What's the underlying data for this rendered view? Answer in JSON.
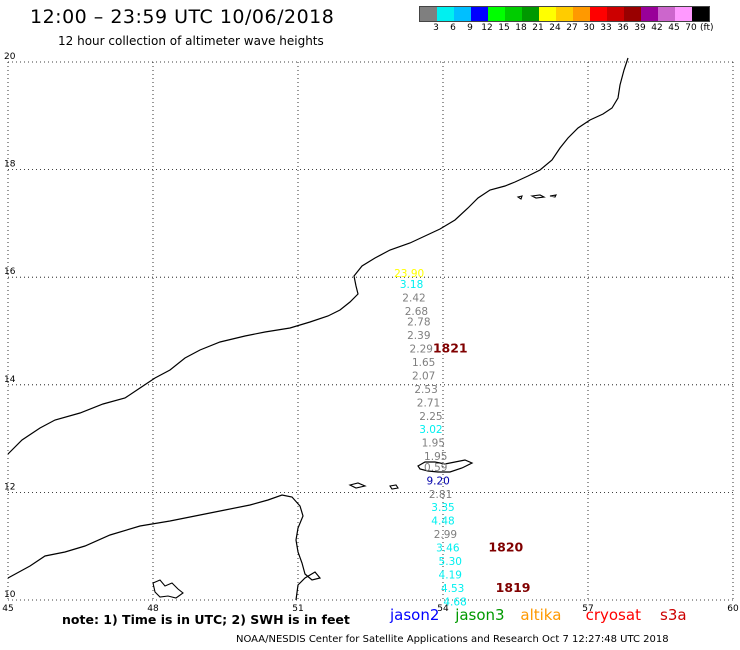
{
  "header": {
    "title": "12:00 – 23:59 UTC 10/06/2018",
    "subtitle": "12 hour collection of altimeter wave heights"
  },
  "colorbar": {
    "unit": "(ft)",
    "swatches": [
      {
        "label": "3",
        "color": "#7f7f7f"
      },
      {
        "label": "6",
        "color": "#00f0f0"
      },
      {
        "label": "9",
        "color": "#00bfff"
      },
      {
        "label": "12",
        "color": "#0000ff"
      },
      {
        "label": "15",
        "color": "#00ff00"
      },
      {
        "label": "18",
        "color": "#00cc00"
      },
      {
        "label": "21",
        "color": "#009900"
      },
      {
        "label": "24",
        "color": "#ffff00"
      },
      {
        "label": "27",
        "color": "#ffcc00"
      },
      {
        "label": "30",
        "color": "#ff9900"
      },
      {
        "label": "33",
        "color": "#ff0000"
      },
      {
        "label": "36",
        "color": "#cc0000"
      },
      {
        "label": "39",
        "color": "#990000"
      },
      {
        "label": "42",
        "color": "#990099"
      },
      {
        "label": "45",
        "color": "#cc66cc"
      },
      {
        "label": "70",
        "color": "#ff99ff"
      },
      {
        "label": "",
        "color": "#000000"
      }
    ]
  },
  "chart_data": {
    "type": "scatter",
    "xlim": [
      45,
      60
    ],
    "ylim": [
      10,
      20
    ],
    "x_ticks": [
      "45",
      "48",
      "51",
      "54",
      "57",
      "60"
    ],
    "y_ticks": [
      "10",
      "12",
      "14",
      "16",
      "18",
      "20"
    ],
    "grid": true,
    "observations": [
      {
        "lon": 53.3,
        "lat": 16.0,
        "value": "23.90",
        "color": "#ffff00"
      },
      {
        "lon": 53.35,
        "lat": 15.8,
        "value": "3.18",
        "color": "#00f0f0"
      },
      {
        "lon": 53.4,
        "lat": 15.55,
        "value": "2.42",
        "color": "#7f7f7f"
      },
      {
        "lon": 53.45,
        "lat": 15.3,
        "value": "2.68",
        "color": "#7f7f7f"
      },
      {
        "lon": 53.5,
        "lat": 15.1,
        "value": "2.78",
        "color": "#7f7f7f"
      },
      {
        "lon": 53.5,
        "lat": 14.85,
        "value": "2.39",
        "color": "#7f7f7f"
      },
      {
        "lon": 53.55,
        "lat": 14.6,
        "value": "2.29",
        "color": "#7f7f7f"
      },
      {
        "lon": 53.6,
        "lat": 14.35,
        "value": "1.65",
        "color": "#7f7f7f"
      },
      {
        "lon": 53.6,
        "lat": 14.1,
        "value": "2.07",
        "color": "#7f7f7f"
      },
      {
        "lon": 53.65,
        "lat": 13.85,
        "value": "2.53",
        "color": "#7f7f7f"
      },
      {
        "lon": 53.7,
        "lat": 13.6,
        "value": "2.71",
        "color": "#7f7f7f"
      },
      {
        "lon": 53.75,
        "lat": 13.35,
        "value": "2.25",
        "color": "#7f7f7f"
      },
      {
        "lon": 53.75,
        "lat": 13.1,
        "value": "3.02",
        "color": "#00f0f0"
      },
      {
        "lon": 53.8,
        "lat": 12.85,
        "value": "1.95",
        "color": "#7f7f7f"
      },
      {
        "lon": 53.85,
        "lat": 12.6,
        "value": "1.95",
        "color": "#7f7f7f"
      },
      {
        "lon": 53.85,
        "lat": 12.4,
        "value": "0.59",
        "color": "#7f7f7f"
      },
      {
        "lon": 53.9,
        "lat": 12.15,
        "value": "9.20",
        "color": "#0000aa"
      },
      {
        "lon": 53.95,
        "lat": 11.9,
        "value": "2.81",
        "color": "#7f7f7f"
      },
      {
        "lon": 54.0,
        "lat": 11.65,
        "value": "3.35",
        "color": "#00f0f0"
      },
      {
        "lon": 54.0,
        "lat": 11.4,
        "value": "4.48",
        "color": "#00f0f0"
      },
      {
        "lon": 54.05,
        "lat": 11.15,
        "value": "2.99",
        "color": "#7f7f7f"
      },
      {
        "lon": 54.1,
        "lat": 10.9,
        "value": "3.46",
        "color": "#00f0f0"
      },
      {
        "lon": 54.15,
        "lat": 10.65,
        "value": "5.30",
        "color": "#00f0f0"
      },
      {
        "lon": 54.15,
        "lat": 10.4,
        "value": "4.19",
        "color": "#00f0f0"
      },
      {
        "lon": 54.2,
        "lat": 10.15,
        "value": "4.53",
        "color": "#00f0f0"
      },
      {
        "lon": 54.25,
        "lat": 9.9,
        "value": "4.68",
        "color": "#00f0f0"
      }
    ],
    "time_labels": [
      {
        "lon": 54.15,
        "lat": 14.6,
        "text": "1821",
        "color": "#800000"
      },
      {
        "lon": 55.3,
        "lat": 10.9,
        "text": "1820",
        "color": "#800000"
      },
      {
        "lon": 55.45,
        "lat": 10.15,
        "text": "1819",
        "color": "#800000"
      }
    ]
  },
  "footer": {
    "note": "note:  1) Time is in UTC;  2) SWH is in feet",
    "legend": [
      {
        "label": "jason2",
        "color": "#0000ff"
      },
      {
        "label": "jason3",
        "color": "#009900"
      },
      {
        "label": "altika",
        "color": "#ff9900"
      },
      {
        "label": "cryosat",
        "color": "#ff0000"
      },
      {
        "label": "s3a",
        "color": "#cc0000"
      }
    ],
    "credit": "NOAA/NESDIS Center for Satellite Applications and Research    Oct  7 12:27:48 UTC 2018"
  }
}
